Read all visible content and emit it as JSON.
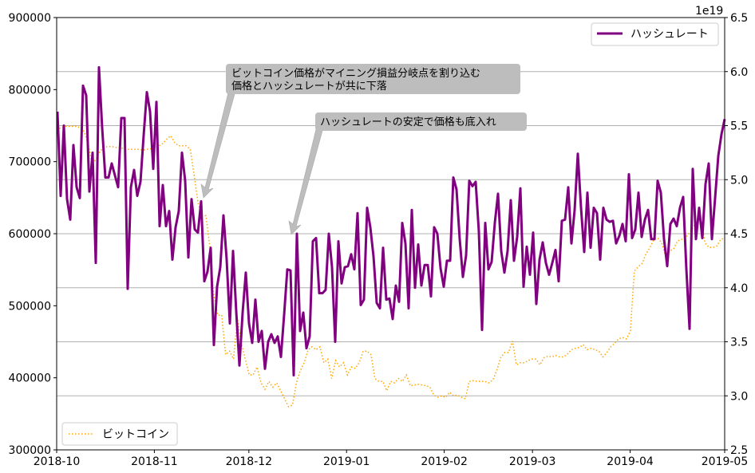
{
  "chart_data": {
    "type": "line",
    "title": "",
    "x_range": [
      "2018-10-01",
      "2019-05-01"
    ],
    "x_ticks": [
      "2018-10",
      "2018-11",
      "2018-12",
      "2019-01",
      "2019-02",
      "2019-03",
      "2019-04",
      "2019-05"
    ],
    "left_axis": {
      "label": "",
      "ylim": [
        300000,
        900000
      ],
      "ticks": [
        "300000",
        "400000",
        "500000",
        "600000",
        "700000",
        "800000",
        "900000"
      ]
    },
    "right_axis": {
      "label": "",
      "offset_text": "1e19",
      "ylim": [
        2.5,
        6.5
      ],
      "ticks": [
        "2.5",
        "3.0",
        "3.5",
        "4.0",
        "4.5",
        "5.0",
        "5.5",
        "6.0",
        "6.5"
      ],
      "grid": true
    },
    "series": [
      {
        "name": "ビットコイン",
        "axis": "left",
        "color": "#FFA500",
        "style": "dotted",
        "legend": "bottom-left",
        "note": "approximately evenly spaced samples from 2018-10-01 to 2019-05-01",
        "values": [
          744000,
          747000,
          749000,
          749000,
          749000,
          749000,
          747000,
          742000,
          725000,
          697000,
          703000,
          714000,
          720000,
          721000,
          721000,
          720000,
          720000,
          718000,
          717000,
          717000,
          717000,
          717000,
          716000,
          717000,
          718000,
          720000,
          722000,
          725000,
          731000,
          736000,
          727000,
          722000,
          722000,
          722000,
          717000,
          681000,
          642000,
          625000,
          625000,
          581000,
          515000,
          487000,
          487000,
          432000,
          437000,
          426000,
          482000,
          448000,
          426000,
          404000,
          404000,
          415000,
          393000,
          384000,
          395000,
          387000,
          393000,
          382000,
          371000,
          360000,
          362000,
          393000,
          410000,
          421000,
          439000,
          443000,
          439000,
          443000,
          421000,
          426000,
          399000,
          424000,
          415000,
          421000,
          404000,
          415000,
          413000,
          421000,
          437000,
          437000,
          432000,
          399000,
          395000,
          395000,
          382000,
          395000,
          393000,
          399000,
          395000,
          404000,
          389000,
          390000,
          391000,
          390000,
          389000,
          387000,
          376000,
          373000,
          375000,
          373000,
          380000,
          375000,
          376000,
          373000,
          371000,
          395000,
          396000,
          395000,
          395000,
          395000,
          393000,
          397000,
          410000,
          428000,
          435000,
          435000,
          451000,
          418000,
          421000,
          421000,
          424000,
          426000,
          426000,
          418000,
          428000,
          430000,
          429000,
          431000,
          429000,
          429000,
          433000,
          439000,
          441000,
          442000,
          446000,
          439000,
          441000,
          439000,
          437000,
          429000,
          435000,
          443000,
          448000,
          454000,
          456000,
          454000,
          465000,
          548000,
          554000,
          559000,
          572000,
          581000,
          592000,
          594000,
          587000,
          568000,
          576000,
          579000,
          590000,
          592000,
          594000,
          601000,
          609000,
          618000,
          620000,
          587000,
          581000,
          581000,
          583000,
          592000,
          594000
        ]
      },
      {
        "name": "ハッシュレート",
        "axis": "right",
        "unit": "1e19",
        "color": "#800080",
        "style": "solid",
        "legend": "top-right",
        "note": "approximately daily samples from 2018-10-01 to 2019-05-01",
        "values": [
          5.63,
          4.85,
          5.5,
          4.82,
          4.63,
          5.32,
          4.93,
          4.83,
          5.87,
          5.78,
          4.89,
          5.25,
          4.23,
          6.04,
          5.48,
          5.02,
          5.02,
          5.15,
          5.04,
          4.93,
          5.57,
          5.57,
          3.99,
          4.93,
          5.09,
          4.85,
          4.98,
          5.41,
          5.81,
          5.63,
          5.1,
          5.72,
          4.57,
          4.95,
          4.57,
          4.71,
          4.26,
          4.56,
          4.71,
          5.25,
          4.99,
          4.28,
          4.82,
          4.54,
          4.51,
          4.8,
          4.06,
          4.15,
          4.37,
          3.47,
          4.01,
          4.19,
          4.67,
          4.26,
          3.67,
          4.34,
          3.78,
          3.28,
          3.77,
          4.14,
          3.67,
          3.49,
          3.89,
          3.5,
          3.6,
          3.25,
          3.5,
          3.57,
          3.49,
          3.55,
          3.36,
          3.75,
          4.17,
          4.16,
          3.19,
          4.5,
          3.6,
          3.77,
          3.44,
          3.55,
          4.43,
          4.46,
          3.95,
          3.95,
          3.98,
          4.5,
          4.19,
          3.5,
          4.43,
          4.04,
          4.19,
          4.2,
          4.31,
          4.17,
          4.69,
          3.84,
          3.89,
          4.74,
          4.56,
          4.29,
          3.86,
          3.81,
          4.37,
          3.89,
          3.9,
          3.71,
          4.02,
          3.87,
          4.6,
          4.41,
          3.81,
          4.72,
          4.0,
          4.4,
          4.02,
          4.21,
          4.21,
          3.92,
          4.56,
          4.5,
          4.18,
          4.01,
          4.25,
          4.25,
          5.02,
          4.91,
          4.45,
          4.1,
          4.3,
          4.99,
          4.94,
          4.98,
          4.52,
          3.61,
          4.6,
          4.17,
          4.24,
          4.6,
          4.87,
          4.34,
          4.14,
          4.34,
          4.81,
          4.25,
          4.47,
          4.92,
          4.01,
          4.38,
          4.12,
          4.51,
          3.85,
          4.26,
          4.42,
          4.23,
          4.12,
          4.23,
          4.35,
          4.06,
          4.62,
          4.63,
          4.93,
          4.41,
          4.72,
          5.24,
          4.74,
          4.33,
          4.88,
          4.37,
          4.74,
          4.69,
          4.26,
          4.74,
          4.63,
          4.61,
          4.62,
          4.41,
          4.48,
          4.59,
          4.43,
          5.05,
          4.46,
          4.54,
          4.88,
          4.47,
          4.63,
          4.72,
          4.45,
          4.45,
          4.99,
          4.88,
          4.45,
          4.2,
          4.59,
          4.64,
          4.57,
          4.74,
          4.84,
          4.17,
          3.62,
          5.1,
          4.45,
          4.74,
          4.46,
          4.96,
          5.15,
          4.45,
          4.83,
          5.22,
          5.42,
          5.56
        ]
      }
    ],
    "annotations": [
      {
        "text_lines": [
          "ビットコイン価格がマイニング損益分岐点を割り込む",
          "価格とハッシュレートが共に下落"
        ],
        "points_to_date": "2018-11-16"
      },
      {
        "text_lines": [
          "ハッシュレートの安定で価格も底入れ"
        ],
        "points_to_date": "2018-12-14"
      }
    ]
  }
}
